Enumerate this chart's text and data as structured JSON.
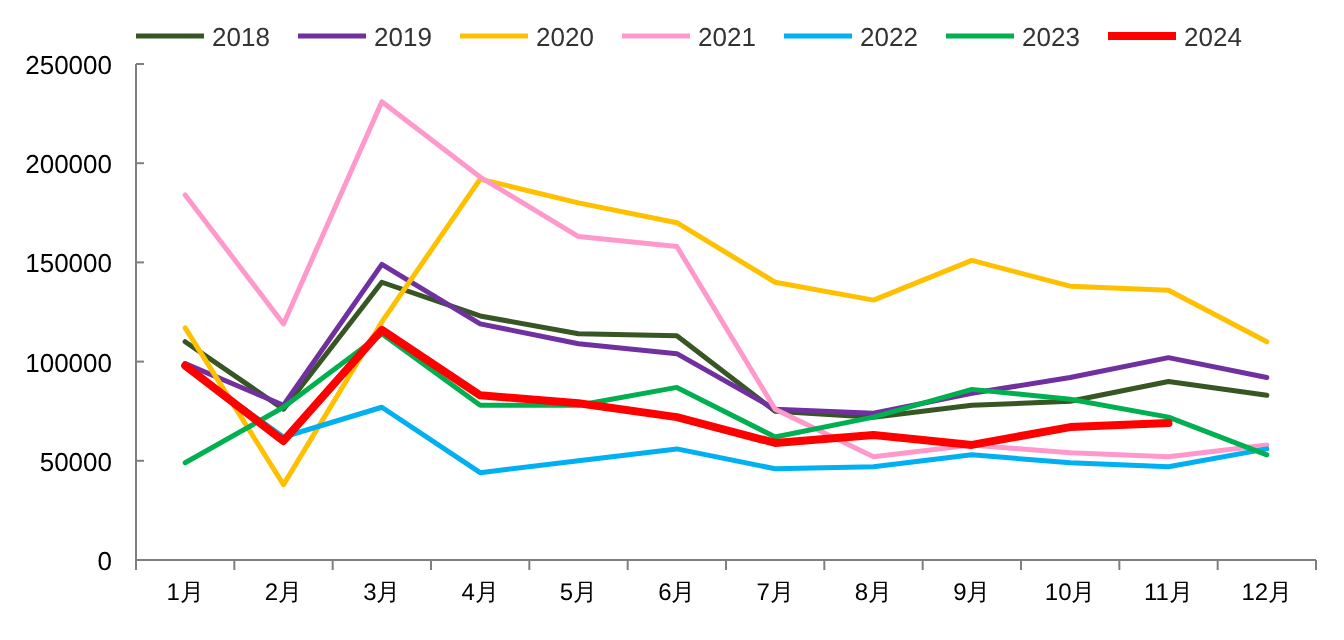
{
  "chart_data": {
    "type": "line",
    "categories": [
      "1月",
      "2月",
      "3月",
      "4月",
      "5月",
      "6月",
      "7月",
      "8月",
      "9月",
      "10月",
      "11月",
      "12月"
    ],
    "series": [
      {
        "name": "2018",
        "color": "#375623",
        "values": [
          110000,
          76000,
          140000,
          123000,
          114000,
          113000,
          75000,
          72000,
          78000,
          80000,
          90000,
          83000
        ]
      },
      {
        "name": "2019",
        "color": "#7030a0",
        "values": [
          99000,
          78000,
          149000,
          119000,
          109000,
          104000,
          76000,
          74000,
          84000,
          92000,
          102000,
          92000
        ]
      },
      {
        "name": "2020",
        "color": "#ffc000",
        "values": [
          117000,
          38000,
          120000,
          192000,
          180000,
          170000,
          140000,
          131000,
          151000,
          138000,
          136000,
          110000
        ]
      },
      {
        "name": "2021",
        "color": "#ff99cc",
        "values": [
          184000,
          119000,
          231000,
          193000,
          163000,
          158000,
          76000,
          52000,
          58000,
          54000,
          52000,
          58000
        ]
      },
      {
        "name": "2022",
        "color": "#00b0f0",
        "values": [
          97000,
          62000,
          77000,
          44000,
          50000,
          56000,
          46000,
          47000,
          53000,
          49000,
          47000,
          56000
        ]
      },
      {
        "name": "2023",
        "color": "#00b050",
        "values": [
          49000,
          77000,
          114000,
          78000,
          78000,
          87000,
          62000,
          72000,
          86000,
          81000,
          72000,
          53000
        ]
      },
      {
        "name": "2024",
        "color": "#ff0000",
        "values": [
          98000,
          60000,
          116000,
          83000,
          79000,
          72000,
          59000,
          63000,
          58000,
          67000,
          69000,
          null
        ]
      }
    ],
    "ylim": [
      0,
      250000
    ],
    "yticks": [
      0,
      50000,
      100000,
      150000,
      200000,
      250000
    ],
    "legend": "top",
    "grid": false,
    "marker": "none",
    "line_style": "solid"
  }
}
